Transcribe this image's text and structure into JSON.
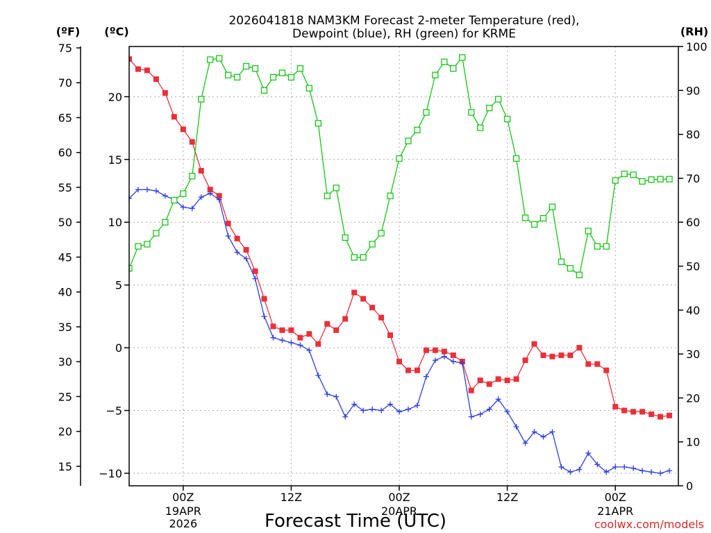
{
  "chart_data": {
    "type": "line",
    "title": [
      "2026041818 NAM3KM Forecast 2-meter Temperature (red),",
      "Dewpoint (blue), RH (green) for KRME"
    ],
    "xlabel": "Forecast Time (UTC)",
    "credit": "coolwx.com/models",
    "units": {
      "fahrenheit": "(ºF)",
      "celsius": "(ºC)",
      "rh": "(RH)"
    },
    "x_range_hours": [
      0,
      61
    ],
    "x_ticks": [
      {
        "hour": 6,
        "label": "00Z",
        "sub": [
          "19APR",
          "2026"
        ]
      },
      {
        "hour": 18,
        "label": "12Z",
        "sub": []
      },
      {
        "hour": 30,
        "label": "00Z",
        "sub": [
          "20APR"
        ]
      },
      {
        "hour": 42,
        "label": "12Z",
        "sub": []
      },
      {
        "hour": 54,
        "label": "00Z",
        "sub": [
          "21APR"
        ]
      }
    ],
    "celsius_range": [
      -11,
      24
    ],
    "celsius_ticks": [
      -10,
      -5,
      0,
      5,
      10,
      15,
      20
    ],
    "fahrenheit_ticks": [
      15,
      20,
      25,
      30,
      35,
      40,
      45,
      50,
      55,
      60,
      65,
      70,
      75
    ],
    "rh_range": [
      0,
      100
    ],
    "rh_ticks": [
      0,
      10,
      20,
      30,
      40,
      50,
      60,
      70,
      80,
      90,
      100
    ],
    "series": [
      {
        "name": "2-meter Temperature",
        "axis": "celsius",
        "color": "#e8303a",
        "marker": "filled-square",
        "values": [
          23.0,
          22.2,
          22.1,
          21.4,
          20.3,
          18.4,
          17.4,
          16.4,
          14.1,
          12.6,
          12.1,
          9.9,
          8.7,
          7.8,
          6.1,
          3.9,
          1.7,
          1.4,
          1.4,
          0.8,
          1.1,
          0.3,
          1.9,
          1.4,
          2.3,
          4.4,
          3.9,
          3.2,
          2.4,
          1.0,
          -1.1,
          -1.8,
          -1.8,
          -0.2,
          -0.2,
          -0.3,
          -0.6,
          -1.1,
          -3.4,
          -2.6,
          -2.9,
          -2.5,
          -2.6,
          -2.5,
          -1.0,
          0.3,
          -0.6,
          -0.7,
          -0.6,
          -0.6,
          0.0,
          -1.3,
          -1.3,
          -1.8,
          -4.7,
          -5.0,
          -5.1,
          -5.1,
          -5.3,
          -5.5,
          -5.4
        ]
      },
      {
        "name": "Dewpoint",
        "axis": "celsius",
        "color": "#2b3ce0",
        "marker": "plus",
        "values": [
          11.9,
          12.6,
          12.6,
          12.5,
          12.1,
          11.8,
          11.2,
          11.1,
          12.0,
          12.3,
          11.8,
          8.9,
          7.6,
          7.1,
          5.5,
          2.5,
          0.8,
          0.6,
          0.4,
          0.2,
          -0.2,
          -2.2,
          -3.7,
          -3.9,
          -5.5,
          -4.5,
          -5.0,
          -4.9,
          -5.0,
          -4.5,
          -5.1,
          -4.9,
          -4.6,
          -2.3,
          -1.0,
          -0.7,
          -1.1,
          -1.2,
          -5.5,
          -5.3,
          -4.9,
          -4.1,
          -5.1,
          -6.3,
          -7.6,
          -6.7,
          -7.1,
          -6.7,
          -9.5,
          -9.9,
          -9.7,
          -8.4,
          -9.3,
          -9.9,
          -9.5,
          -9.5,
          -9.6,
          -9.8,
          -9.9,
          -10.0,
          -9.8
        ]
      },
      {
        "name": "Relative Humidity",
        "axis": "rh",
        "color": "#17c417",
        "marker": "open-square",
        "values": [
          49.5,
          54.5,
          55.0,
          57.5,
          60.0,
          65.0,
          66.5,
          70.5,
          88.0,
          97.0,
          97.3,
          93.5,
          93.0,
          95.5,
          95.0,
          90.0,
          93.0,
          94.0,
          93.0,
          95.0,
          90.5,
          82.5,
          66.0,
          67.8,
          56.5,
          52.0,
          52.0,
          55.0,
          57.5,
          66.0,
          74.5,
          78.5,
          81.0,
          85.0,
          93.5,
          96.5,
          95.0,
          97.5,
          85.0,
          81.5,
          86.0,
          88.0,
          83.5,
          74.5,
          61.0,
          59.5,
          60.9,
          63.5,
          51.0,
          49.5,
          48.0,
          58.0,
          54.5,
          54.5,
          69.5,
          71.0,
          70.8,
          69.3,
          69.7,
          69.8,
          69.8
        ]
      }
    ]
  }
}
